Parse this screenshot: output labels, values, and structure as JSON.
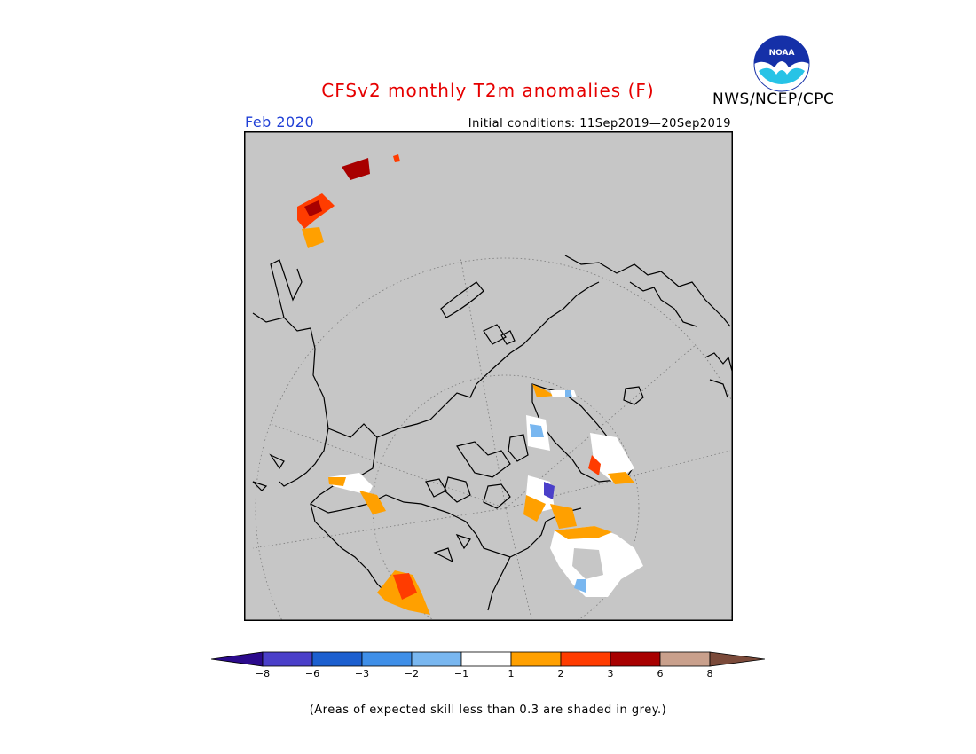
{
  "title": "CFSv2 monthly T2m anomalies (F)",
  "organization": "NWS/NCEP/CPC",
  "logo_text": "NOAA",
  "forecast_month": "Feb 2020",
  "initial_conditions": "Initial conditions: 11Sep2019—20Sep2019",
  "map": {
    "projection": "north-polar-stereographic",
    "background_color": "#c6c6c6",
    "coastline_color": "#000000"
  },
  "colorbar": {
    "tick_labels": [
      "−8",
      "−6",
      "−3",
      "−2",
      "−1",
      "1",
      "2",
      "3",
      "6",
      "8"
    ],
    "colors": [
      "#2b0a8c",
      "#4a3fc9",
      "#1c5fcf",
      "#3f8fe8",
      "#79b7f0",
      "#ffffff",
      "#ffa000",
      "#ff3c00",
      "#a80000",
      "#c9a08c",
      "#7b4a3a"
    ]
  },
  "footnote": "(Areas of expected skill less than 0.3 are shaded in grey.)"
}
